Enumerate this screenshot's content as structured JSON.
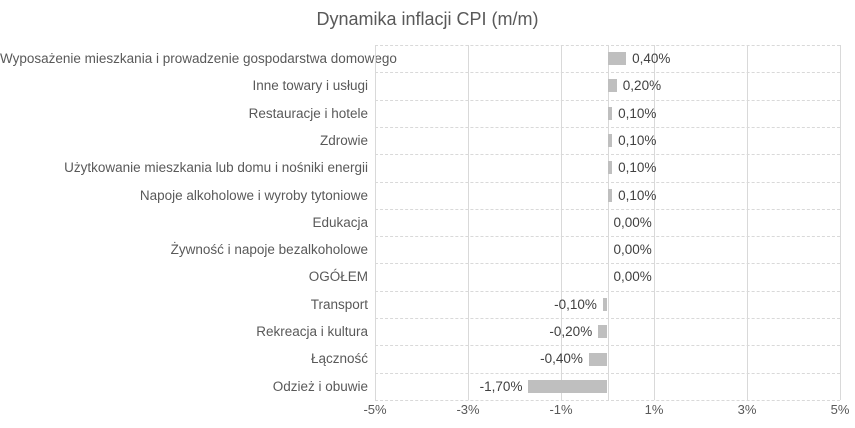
{
  "title": "Dynamika inflacji CPI (m/m)",
  "chart_data": {
    "type": "bar",
    "orientation": "horizontal",
    "title": "Dynamika inflacji CPI (m/m)",
    "categories": [
      "Wyposażenie mieszkania i prowadzenie gospodarstwa domowego",
      "Inne towary i usługi",
      "Restauracje i hotele",
      "Zdrowie",
      "Użytkowanie mieszkania lub domu i nośniki energii",
      "Napoje alkoholowe i wyroby tytoniowe",
      "Edukacja",
      "Żywność i napoje bezalkoholowe",
      "OGÓŁEM",
      "Transport",
      "Rekreacja i kultura",
      "Łączność",
      "Odzież i obuwie"
    ],
    "values": [
      0.4,
      0.2,
      0.1,
      0.1,
      0.1,
      0.1,
      0.0,
      0.0,
      0.0,
      -0.1,
      -0.2,
      -0.4,
      -1.7
    ],
    "value_labels": [
      "0,40%",
      "0,20%",
      "0,10%",
      "0,10%",
      "0,10%",
      "0,10%",
      "0,00%",
      "0,00%",
      "0,00%",
      "-0,10%",
      "-0,20%",
      "-0,40%",
      "-1,70%"
    ],
    "xlim": [
      -5,
      5
    ],
    "x_tick_values": [
      -5,
      -3,
      -1,
      1,
      3,
      5
    ],
    "x_tick_labels": [
      "-5%",
      "-3%",
      "-1%",
      "1%",
      "3%",
      "5%"
    ],
    "grid": true,
    "legend": false
  },
  "colors": {
    "bar": "#bfbfbf",
    "grid": "#d9d9d9",
    "title_text": "#595959",
    "axis_text": "#595959",
    "data_label_text": "#404040",
    "background": "#ffffff"
  }
}
